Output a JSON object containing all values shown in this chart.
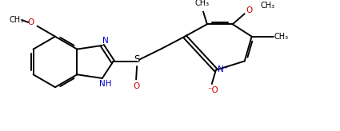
{
  "bg": "#ffffff",
  "lc": "#000000",
  "lw": 1.4,
  "dbo": 0.045,
  "xlim": [
    0,
    8.5
  ],
  "ylim": [
    0,
    3.2
  ],
  "figw": 4.25,
  "figh": 1.64,
  "dpi": 100
}
